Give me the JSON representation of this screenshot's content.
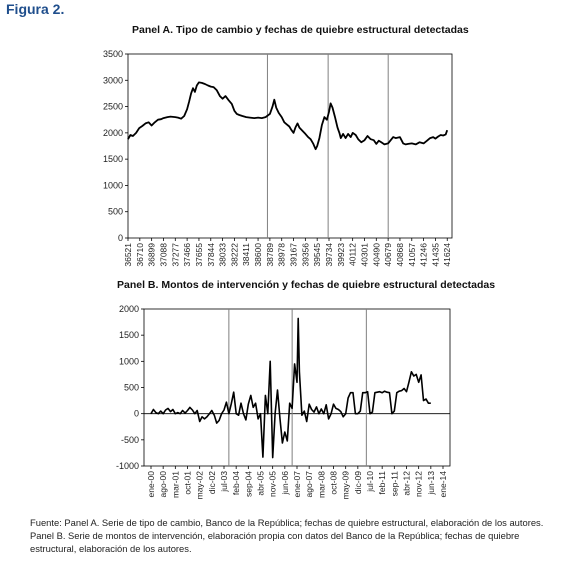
{
  "figure_title": "Figura 2.",
  "source_note": "Fuente: Panel A. Serie de tipo de cambio, Banco de la República; fechas de quiebre estructural, elaboración de los autores. Panel B. Serie de montos de intervención, elaboración propia con datos del Banco de la República; fechas de quiebre estructural, elaboración de los autores.",
  "colors": {
    "line": "#000000",
    "break_line": "#808080",
    "title": "#1f4e8c"
  },
  "chart_data": [
    {
      "type": "line",
      "title": "Panel A. Tipo de cambio y fechas de quiebre estructural detectadas",
      "xlabel": "",
      "ylabel": "",
      "xlim": [
        36521,
        41700
      ],
      "ylim": [
        0,
        3500
      ],
      "yticks": [
        0,
        500,
        1000,
        1500,
        2000,
        2500,
        3000,
        3500
      ],
      "xtick_labels": [
        "36521",
        "36710",
        "36899",
        "37088",
        "37277",
        "37466",
        "37655",
        "37844",
        "38033",
        "38222",
        "38411",
        "38600",
        "38789",
        "38978",
        "39167",
        "39356",
        "39545",
        "39734",
        "39923",
        "40112",
        "40301",
        "40490",
        "40679",
        "40868",
        "41057",
        "41246",
        "41435",
        "41624"
      ],
      "grid": false,
      "structural_breaks": [
        38750,
        39720,
        40680
      ],
      "series": [
        {
          "values": [
            [
              36521,
              1880
            ],
            [
              36560,
              1960
            ],
            [
              36600,
              1940
            ],
            [
              36650,
              2000
            ],
            [
              36700,
              2090
            ],
            [
              36750,
              2130
            ],
            [
              36800,
              2180
            ],
            [
              36850,
              2200
            ],
            [
              36899,
              2140
            ],
            [
              36950,
              2200
            ],
            [
              37000,
              2250
            ],
            [
              37050,
              2260
            ],
            [
              37088,
              2280
            ],
            [
              37150,
              2300
            ],
            [
              37200,
              2310
            ],
            [
              37277,
              2300
            ],
            [
              37320,
              2290
            ],
            [
              37370,
              2270
            ],
            [
              37420,
              2320
            ],
            [
              37466,
              2450
            ],
            [
              37500,
              2600
            ],
            [
              37530,
              2750
            ],
            [
              37560,
              2850
            ],
            [
              37590,
              2780
            ],
            [
              37620,
              2900
            ],
            [
              37655,
              2960
            ],
            [
              37700,
              2950
            ],
            [
              37750,
              2930
            ],
            [
              37800,
              2900
            ],
            [
              37844,
              2880
            ],
            [
              37890,
              2870
            ],
            [
              37940,
              2810
            ],
            [
              37990,
              2700
            ],
            [
              38033,
              2650
            ],
            [
              38080,
              2700
            ],
            [
              38130,
              2620
            ],
            [
              38180,
              2550
            ],
            [
              38222,
              2420
            ],
            [
              38260,
              2360
            ],
            [
              38300,
              2340
            ],
            [
              38350,
              2320
            ],
            [
              38411,
              2300
            ],
            [
              38470,
              2290
            ],
            [
              38540,
              2280
            ],
            [
              38600,
              2290
            ],
            [
              38660,
              2280
            ],
            [
              38720,
              2300
            ],
            [
              38789,
              2360
            ],
            [
              38830,
              2500
            ],
            [
              38860,
              2630
            ],
            [
              38890,
              2480
            ],
            [
              38930,
              2380
            ],
            [
              38978,
              2300
            ],
            [
              39020,
              2200
            ],
            [
              39060,
              2160
            ],
            [
              39100,
              2120
            ],
            [
              39130,
              2060
            ],
            [
              39167,
              2000
            ],
            [
              39200,
              2110
            ],
            [
              39230,
              2180
            ],
            [
              39260,
              2100
            ],
            [
              39300,
              2050
            ],
            [
              39356,
              1980
            ],
            [
              39400,
              1920
            ],
            [
              39440,
              1880
            ],
            [
              39480,
              1800
            ],
            [
              39520,
              1690
            ],
            [
              39545,
              1750
            ],
            [
              39580,
              1900
            ],
            [
              39620,
              2150
            ],
            [
              39660,
              2300
            ],
            [
              39700,
              2250
            ],
            [
              39734,
              2400
            ],
            [
              39760,
              2560
            ],
            [
              39790,
              2480
            ],
            [
              39830,
              2300
            ],
            [
              39870,
              2100
            ],
            [
              39900,
              2000
            ],
            [
              39923,
              1900
            ],
            [
              39960,
              1980
            ],
            [
              40000,
              1900
            ],
            [
              40040,
              1980
            ],
            [
              40080,
              1920
            ],
            [
              40112,
              2000
            ],
            [
              40160,
              1960
            ],
            [
              40200,
              1880
            ],
            [
              40250,
              1820
            ],
            [
              40301,
              1860
            ],
            [
              40350,
              1940
            ],
            [
              40400,
              1880
            ],
            [
              40450,
              1860
            ],
            [
              40490,
              1790
            ],
            [
              40530,
              1850
            ],
            [
              40570,
              1820
            ],
            [
              40620,
              1780
            ],
            [
              40679,
              1800
            ],
            [
              40720,
              1860
            ],
            [
              40760,
              1920
            ],
            [
              40800,
              1900
            ],
            [
              40868,
              1920
            ],
            [
              40920,
              1800
            ],
            [
              40960,
              1780
            ],
            [
              41000,
              1790
            ],
            [
              41057,
              1800
            ],
            [
              41120,
              1780
            ],
            [
              41180,
              1820
            ],
            [
              41246,
              1800
            ],
            [
              41300,
              1850
            ],
            [
              41350,
              1900
            ],
            [
              41400,
              1920
            ],
            [
              41435,
              1890
            ],
            [
              41480,
              1930
            ],
            [
              41520,
              1960
            ],
            [
              41560,
              1950
            ],
            [
              41600,
              1970
            ],
            [
              41624,
              2050
            ]
          ]
        }
      ]
    },
    {
      "type": "line",
      "title": "Panel B. Montos de intervención y fechas de quiebre estructural detectadas",
      "xlabel": "",
      "ylabel": "",
      "ylim": [
        -1000,
        2000
      ],
      "yticks": [
        -1000,
        -500,
        0,
        500,
        1000,
        1500,
        2000
      ],
      "xtick_labels": [
        "ene-00",
        "ago-00",
        "mar-01",
        "oct-01",
        "may-02",
        "dic-02",
        "jul-03",
        "feb-04",
        "sep-04",
        "abr-05",
        "nov-05",
        "jun-06",
        "ene-07",
        "ago-07",
        "mar-08",
        "oct-08",
        "may-09",
        "dic-09",
        "jul-10",
        "feb-11",
        "sep-11",
        "abr-12",
        "nov-12",
        "jun-13",
        "ene-14"
      ],
      "grid": false,
      "structural_breaks": [
        6.4,
        11.6,
        17.7
      ],
      "series": [
        {
          "values": [
            [
              0,
              0
            ],
            [
              0.2,
              80
            ],
            [
              0.4,
              20
            ],
            [
              0.6,
              0
            ],
            [
              0.8,
              50
            ],
            [
              1,
              0
            ],
            [
              1.2,
              70
            ],
            [
              1.4,
              100
            ],
            [
              1.6,
              40
            ],
            [
              1.8,
              80
            ],
            [
              2,
              0
            ],
            [
              2.2,
              20
            ],
            [
              2.4,
              0
            ],
            [
              2.6,
              60
            ],
            [
              2.8,
              10
            ],
            [
              3,
              60
            ],
            [
              3.2,
              120
            ],
            [
              3.4,
              70
            ],
            [
              3.6,
              0
            ],
            [
              3.8,
              60
            ],
            [
              4,
              -150
            ],
            [
              4.2,
              -60
            ],
            [
              4.4,
              -100
            ],
            [
              4.6,
              -60
            ],
            [
              4.8,
              0
            ],
            [
              5,
              60
            ],
            [
              5.2,
              -30
            ],
            [
              5.4,
              -180
            ],
            [
              5.6,
              -130
            ],
            [
              5.8,
              0
            ],
            [
              6,
              70
            ],
            [
              6.2,
              220
            ],
            [
              6.4,
              0
            ],
            [
              6.6,
              190
            ],
            [
              6.8,
              410
            ],
            [
              7,
              0
            ],
            [
              7.2,
              -30
            ],
            [
              7.4,
              200
            ],
            [
              7.6,
              0
            ],
            [
              7.8,
              -120
            ],
            [
              8,
              180
            ],
            [
              8.2,
              350
            ],
            [
              8.4,
              120
            ],
            [
              8.6,
              200
            ],
            [
              8.8,
              -100
            ],
            [
              9,
              0
            ],
            [
              9.2,
              -830
            ],
            [
              9.4,
              350
            ],
            [
              9.6,
              0
            ],
            [
              9.8,
              1000
            ],
            [
              10,
              -840
            ],
            [
              10.2,
              0
            ],
            [
              10.4,
              450
            ],
            [
              10.6,
              -100
            ],
            [
              10.8,
              -560
            ],
            [
              11,
              -350
            ],
            [
              11.2,
              -520
            ],
            [
              11.4,
              200
            ],
            [
              11.6,
              100
            ],
            [
              11.8,
              950
            ],
            [
              12,
              600
            ],
            [
              12.1,
              1820
            ],
            [
              12.2,
              800
            ],
            [
              12.4,
              -30
            ],
            [
              12.6,
              50
            ],
            [
              12.8,
              -150
            ],
            [
              13,
              180
            ],
            [
              13.2,
              80
            ],
            [
              13.4,
              30
            ],
            [
              13.6,
              130
            ],
            [
              13.8,
              0
            ],
            [
              14,
              90
            ],
            [
              14.2,
              0
            ],
            [
              14.4,
              170
            ],
            [
              14.6,
              -100
            ],
            [
              14.8,
              0
            ],
            [
              15,
              180
            ],
            [
              15.2,
              100
            ],
            [
              15.4,
              80
            ],
            [
              15.6,
              40
            ],
            [
              15.8,
              -60
            ],
            [
              16,
              0
            ],
            [
              16.2,
              300
            ],
            [
              16.4,
              400
            ],
            [
              16.6,
              400
            ],
            [
              16.8,
              0
            ],
            [
              17,
              0
            ],
            [
              17.2,
              50
            ],
            [
              17.4,
              400
            ],
            [
              17.6,
              400
            ],
            [
              17.8,
              420
            ],
            [
              18,
              0
            ],
            [
              18.2,
              30
            ],
            [
              18.4,
              400
            ],
            [
              18.6,
              410
            ],
            [
              18.8,
              420
            ],
            [
              19,
              400
            ],
            [
              19.2,
              430
            ],
            [
              19.4,
              410
            ],
            [
              19.6,
              400
            ],
            [
              19.8,
              0
            ],
            [
              20,
              50
            ],
            [
              20.2,
              400
            ],
            [
              20.4,
              430
            ],
            [
              20.6,
              440
            ],
            [
              20.8,
              480
            ],
            [
              21,
              420
            ],
            [
              21.2,
              600
            ],
            [
              21.4,
              800
            ],
            [
              21.6,
              720
            ],
            [
              21.8,
              750
            ],
            [
              22,
              600
            ],
            [
              22.2,
              740
            ],
            [
              22.4,
              250
            ],
            [
              22.6,
              280
            ],
            [
              22.8,
              200
            ],
            [
              23,
              200
            ]
          ]
        }
      ]
    }
  ]
}
